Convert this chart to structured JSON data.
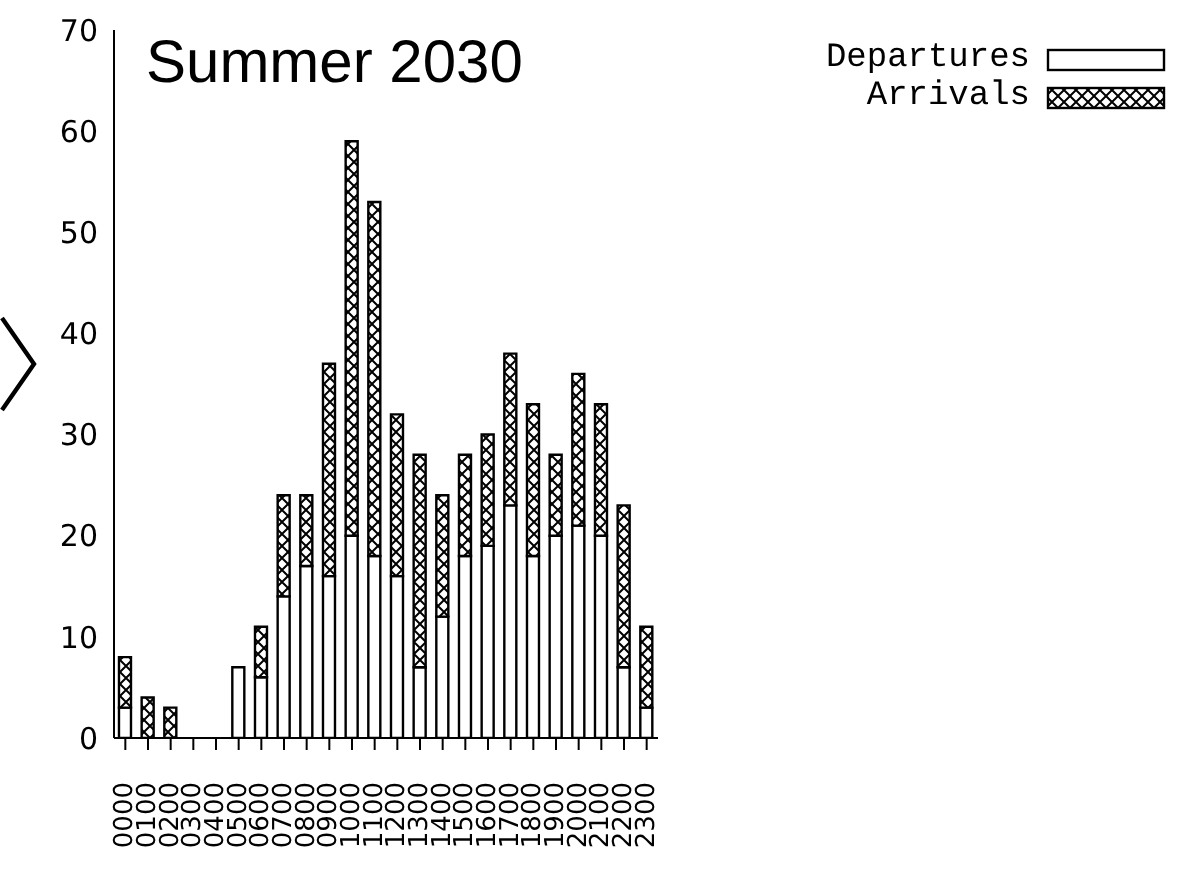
{
  "chart_data": {
    "type": "bar",
    "title": "Summer 2030",
    "stacked": true,
    "legend": "top right",
    "categories": [
      "0000",
      "0100",
      "0200",
      "0300",
      "0400",
      "0500",
      "0600",
      "0700",
      "0800",
      "0900",
      "1000",
      "1100",
      "1200",
      "1300",
      "1400",
      "1500",
      "1600",
      "1700",
      "1800",
      "1900",
      "2000",
      "2100",
      "2200",
      "2300"
    ],
    "series": [
      {
        "name": "Departures",
        "color": "#ffffff",
        "values": [
          3,
          0,
          0,
          0,
          0,
          7,
          6,
          14,
          17,
          16,
          20,
          18,
          16,
          7,
          12,
          18,
          19,
          23,
          18,
          20,
          21,
          20,
          7,
          3
        ]
      },
      {
        "name": "Arrivals",
        "color": "#000000",
        "values": [
          5,
          4,
          3,
          0,
          0,
          0,
          5,
          10,
          7,
          21,
          39,
          35,
          16,
          21,
          12,
          10,
          11,
          15,
          15,
          8,
          15,
          13,
          16,
          8
        ]
      }
    ],
    "ylim": [
      0,
      70
    ],
    "yticks": [
      0,
      10,
      20,
      30,
      40,
      50,
      60,
      70
    ]
  }
}
